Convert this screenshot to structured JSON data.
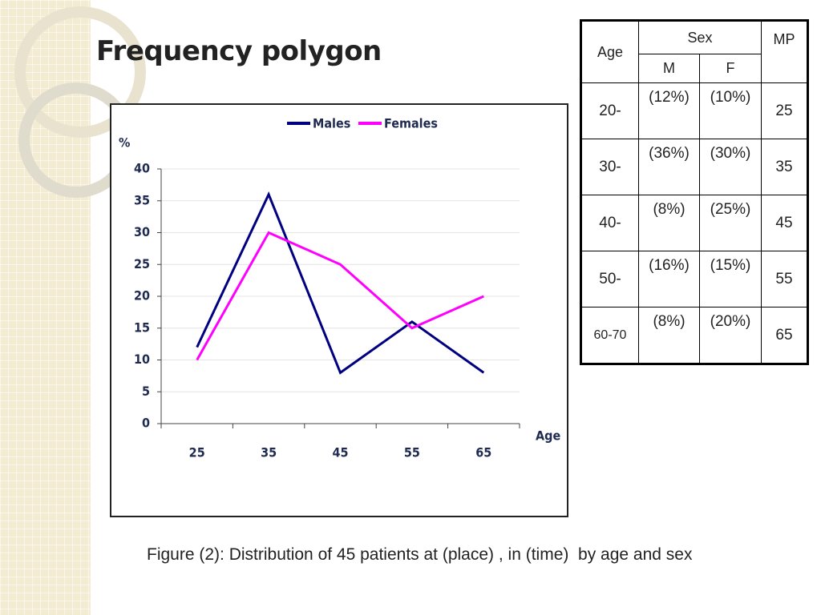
{
  "title": "Frequency polygon",
  "chart_data": {
    "type": "line",
    "ylabel": "%",
    "xlabel": "Age",
    "categories": [
      "25",
      "35",
      "45",
      "55",
      "65"
    ],
    "series": [
      {
        "name": "Males",
        "color": "#000080",
        "values": [
          12,
          36,
          8,
          16,
          8
        ]
      },
      {
        "name": "Females",
        "color": "#ff00ff",
        "values": [
          10,
          30,
          25,
          15,
          20
        ]
      }
    ],
    "ylim": [
      0,
      40
    ],
    "yticks": [
      0,
      5,
      10,
      15,
      20,
      25,
      30,
      35,
      40
    ],
    "grid": true,
    "legend": "top"
  },
  "table": {
    "headers": {
      "age": "Age",
      "sex": "Sex",
      "m": "M",
      "f": "F",
      "mp": "MP"
    },
    "rows": [
      [
        "20-",
        "(12%)",
        "(10%)",
        "25"
      ],
      [
        "30-",
        "(36%)",
        "(30%)",
        "35"
      ],
      [
        "40-",
        "(8%)",
        "(25%)",
        "45"
      ],
      [
        "50-",
        "(16%)",
        "(15%)",
        "55"
      ],
      [
        "60-70",
        "(8%)",
        "(20%)",
        "65"
      ]
    ]
  },
  "caption": "Figure (2): Distribution of 45 patients at (place) , in (time)  by age and sex"
}
